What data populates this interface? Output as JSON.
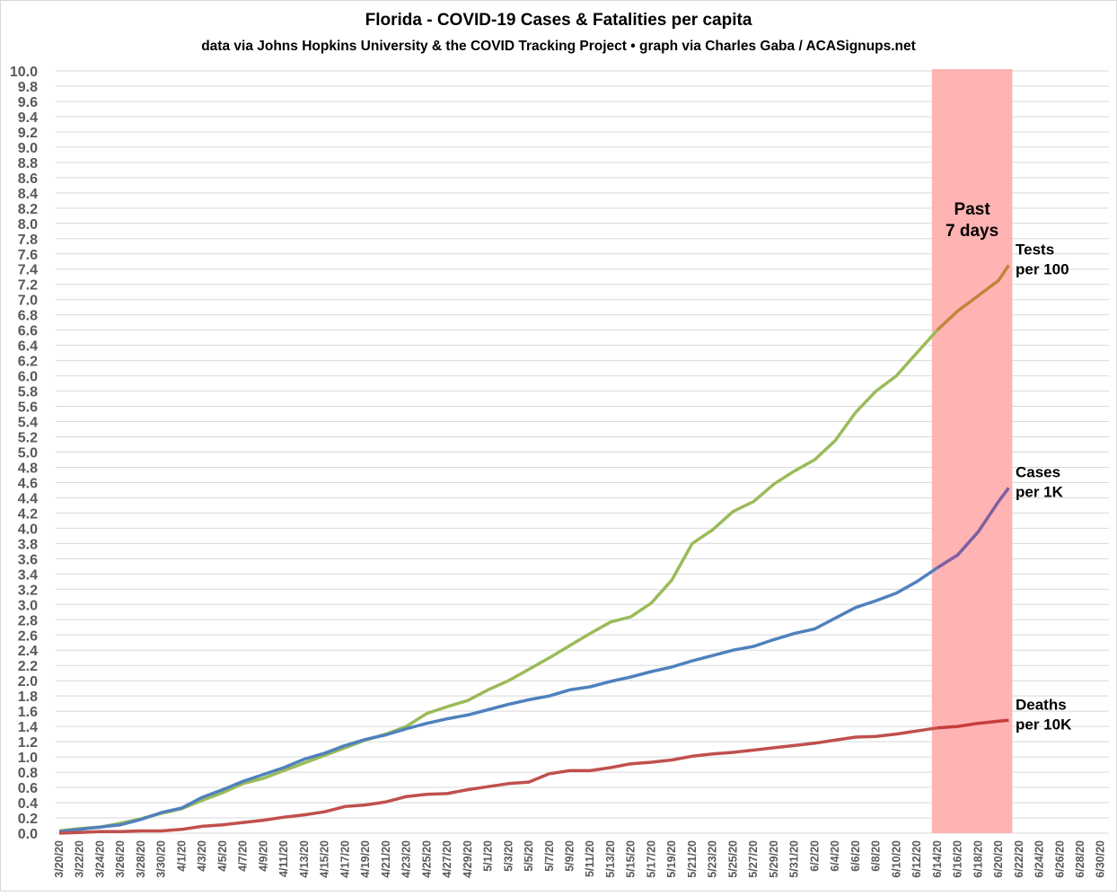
{
  "chart_data": {
    "type": "line",
    "title": "Florida - COVID-19 Cases & Fatalities per capita",
    "subtitle": "data via Johns Hopkins University & the COVID Tracking Project • graph via Charles Gaba / ACASignups.net",
    "xlabel": "",
    "ylabel": "",
    "ylim": [
      0,
      10
    ],
    "y_tick_step": 0.2,
    "grid": true,
    "x_tick_labels": [
      "3/20/20",
      "3/22/20",
      "3/24/20",
      "3/26/20",
      "3/28/20",
      "3/30/20",
      "4/1/20",
      "4/3/20",
      "4/5/20",
      "4/7/20",
      "4/9/20",
      "4/11/20",
      "4/13/20",
      "4/15/20",
      "4/17/20",
      "4/19/20",
      "4/21/20",
      "4/23/20",
      "4/25/20",
      "4/27/20",
      "4/29/20",
      "5/1/20",
      "5/3/20",
      "5/5/20",
      "5/7/20",
      "5/9/20",
      "5/11/20",
      "5/13/20",
      "5/15/20",
      "5/17/20",
      "5/19/20",
      "5/21/20",
      "5/23/20",
      "5/25/20",
      "5/27/20",
      "5/29/20",
      "5/31/20",
      "6/2/20",
      "6/4/20",
      "6/6/20",
      "6/8/20",
      "6/10/20",
      "6/12/20",
      "6/14/20",
      "6/16/20",
      "6/18/20",
      "6/20/20",
      "6/22/20",
      "6/24/20",
      "6/26/20",
      "6/28/20",
      "6/30/20"
    ],
    "x": [
      "3/20",
      "3/22",
      "3/24",
      "3/26",
      "3/28",
      "3/30",
      "4/1",
      "4/3",
      "4/5",
      "4/7",
      "4/9",
      "4/11",
      "4/13",
      "4/15",
      "4/17",
      "4/19",
      "4/21",
      "4/23",
      "4/25",
      "4/27",
      "4/29",
      "5/1",
      "5/3",
      "5/5",
      "5/7",
      "5/9",
      "5/11",
      "5/13",
      "5/15",
      "5/17",
      "5/19",
      "5/21",
      "5/23",
      "5/25",
      "5/27",
      "5/29",
      "5/31",
      "6/2",
      "6/4",
      "6/6",
      "6/8",
      "6/10",
      "6/12",
      "6/14",
      "6/16",
      "6/18",
      "6/20",
      "6/21"
    ],
    "series": [
      {
        "name": "Tests per 100",
        "color": "#9bbb59",
        "recent_color": "#c0843c",
        "values": [
          0.03,
          0.06,
          0.08,
          0.13,
          0.19,
          0.26,
          0.32,
          0.43,
          0.53,
          0.65,
          0.72,
          0.82,
          0.92,
          1.02,
          1.12,
          1.22,
          1.3,
          1.4,
          1.57,
          1.66,
          1.74,
          1.88,
          2.0,
          2.15,
          2.3,
          2.46,
          2.62,
          2.77,
          2.84,
          3.02,
          3.32,
          3.8,
          3.98,
          4.22,
          4.35,
          4.58,
          4.75,
          4.9,
          5.15,
          5.52,
          5.8,
          6.0,
          6.3,
          6.6,
          6.85,
          7.05,
          7.25,
          7.45
        ]
      },
      {
        "name": "Cases per 1K",
        "color": "#4f81bd",
        "recent_color": "#7e5fa0",
        "values": [
          0.02,
          0.05,
          0.08,
          0.11,
          0.18,
          0.27,
          0.33,
          0.47,
          0.57,
          0.68,
          0.77,
          0.86,
          0.97,
          1.05,
          1.15,
          1.23,
          1.29,
          1.37,
          1.44,
          1.5,
          1.55,
          1.62,
          1.69,
          1.75,
          1.8,
          1.88,
          1.92,
          1.99,
          2.05,
          2.12,
          2.18,
          2.26,
          2.33,
          2.4,
          2.45,
          2.54,
          2.62,
          2.68,
          2.82,
          2.96,
          3.05,
          3.15,
          3.3,
          3.48,
          3.65,
          3.95,
          4.35,
          4.53
        ]
      },
      {
        "name": "Deaths per 10K",
        "color": "#c0504d",
        "recent_color": "#c83c3c",
        "values": [
          0.0,
          0.01,
          0.02,
          0.02,
          0.03,
          0.03,
          0.05,
          0.09,
          0.11,
          0.14,
          0.17,
          0.21,
          0.24,
          0.28,
          0.35,
          0.37,
          0.41,
          0.48,
          0.51,
          0.52,
          0.57,
          0.61,
          0.65,
          0.67,
          0.78,
          0.82,
          0.82,
          0.86,
          0.91,
          0.93,
          0.96,
          1.01,
          1.04,
          1.06,
          1.09,
          1.12,
          1.15,
          1.18,
          1.22,
          1.26,
          1.27,
          1.3,
          1.34,
          1.38,
          1.4,
          1.44,
          1.47,
          1.48
        ]
      }
    ],
    "series_labels": [
      {
        "line1": "Tests",
        "line2": "per 100"
      },
      {
        "line1": "Cases",
        "line2": "per 1K"
      },
      {
        "line1": "Deaths",
        "line2": "per 10K"
      }
    ],
    "highlight": {
      "from": "6/14",
      "to": "6/21",
      "line1": "Past",
      "line2": "7 days",
      "color": "#ffb3b3"
    }
  }
}
